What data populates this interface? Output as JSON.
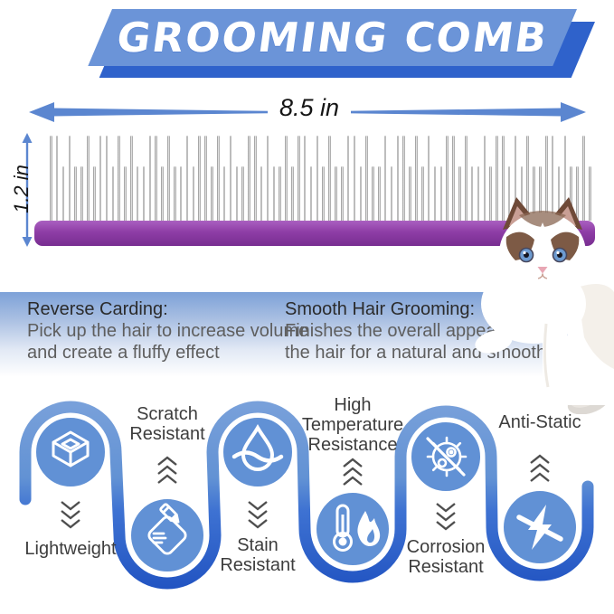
{
  "banner": {
    "title": "GROOMING COMB"
  },
  "dimensions": {
    "width": "8.5 in",
    "height": "1.2 in"
  },
  "info_blocks": [
    {
      "heading": "Reverse Carding:",
      "body": "Pick up the hair to increase volume\nand create a fluffy effect"
    },
    {
      "heading": "Smooth Hair Grooming:",
      "body": "Finishes the overall appearance of\nthe hair for a natural and smooth"
    }
  ],
  "features": [
    {
      "label": "Lightweight",
      "icon": "cube-icon",
      "placement": "top"
    },
    {
      "label": "Scratch\nResistant",
      "icon": "notepad-pen-icon",
      "placement": "bottom"
    },
    {
      "label": "Stain\nResistant",
      "icon": "water-drop-icon",
      "placement": "top"
    },
    {
      "label": "High\nTemperature\nResistance",
      "icon": "thermometer-flame-icon",
      "placement": "bottom"
    },
    {
      "label": "Corrosion\nResistant",
      "icon": "germ-icon",
      "placement": "top"
    },
    {
      "label": "Anti-Static",
      "icon": "anti-static-icon",
      "placement": "bottom"
    }
  ],
  "colors": {
    "banner_front": "#6b94d8",
    "banner_shadow": "#2f62cb",
    "arrow_blue": "#5b86d0",
    "ribbon_light": "#78a0da",
    "ribbon_dark": "#2254c2",
    "circle_fill": "#6191d5",
    "handle_purple": "#8e3da6"
  }
}
